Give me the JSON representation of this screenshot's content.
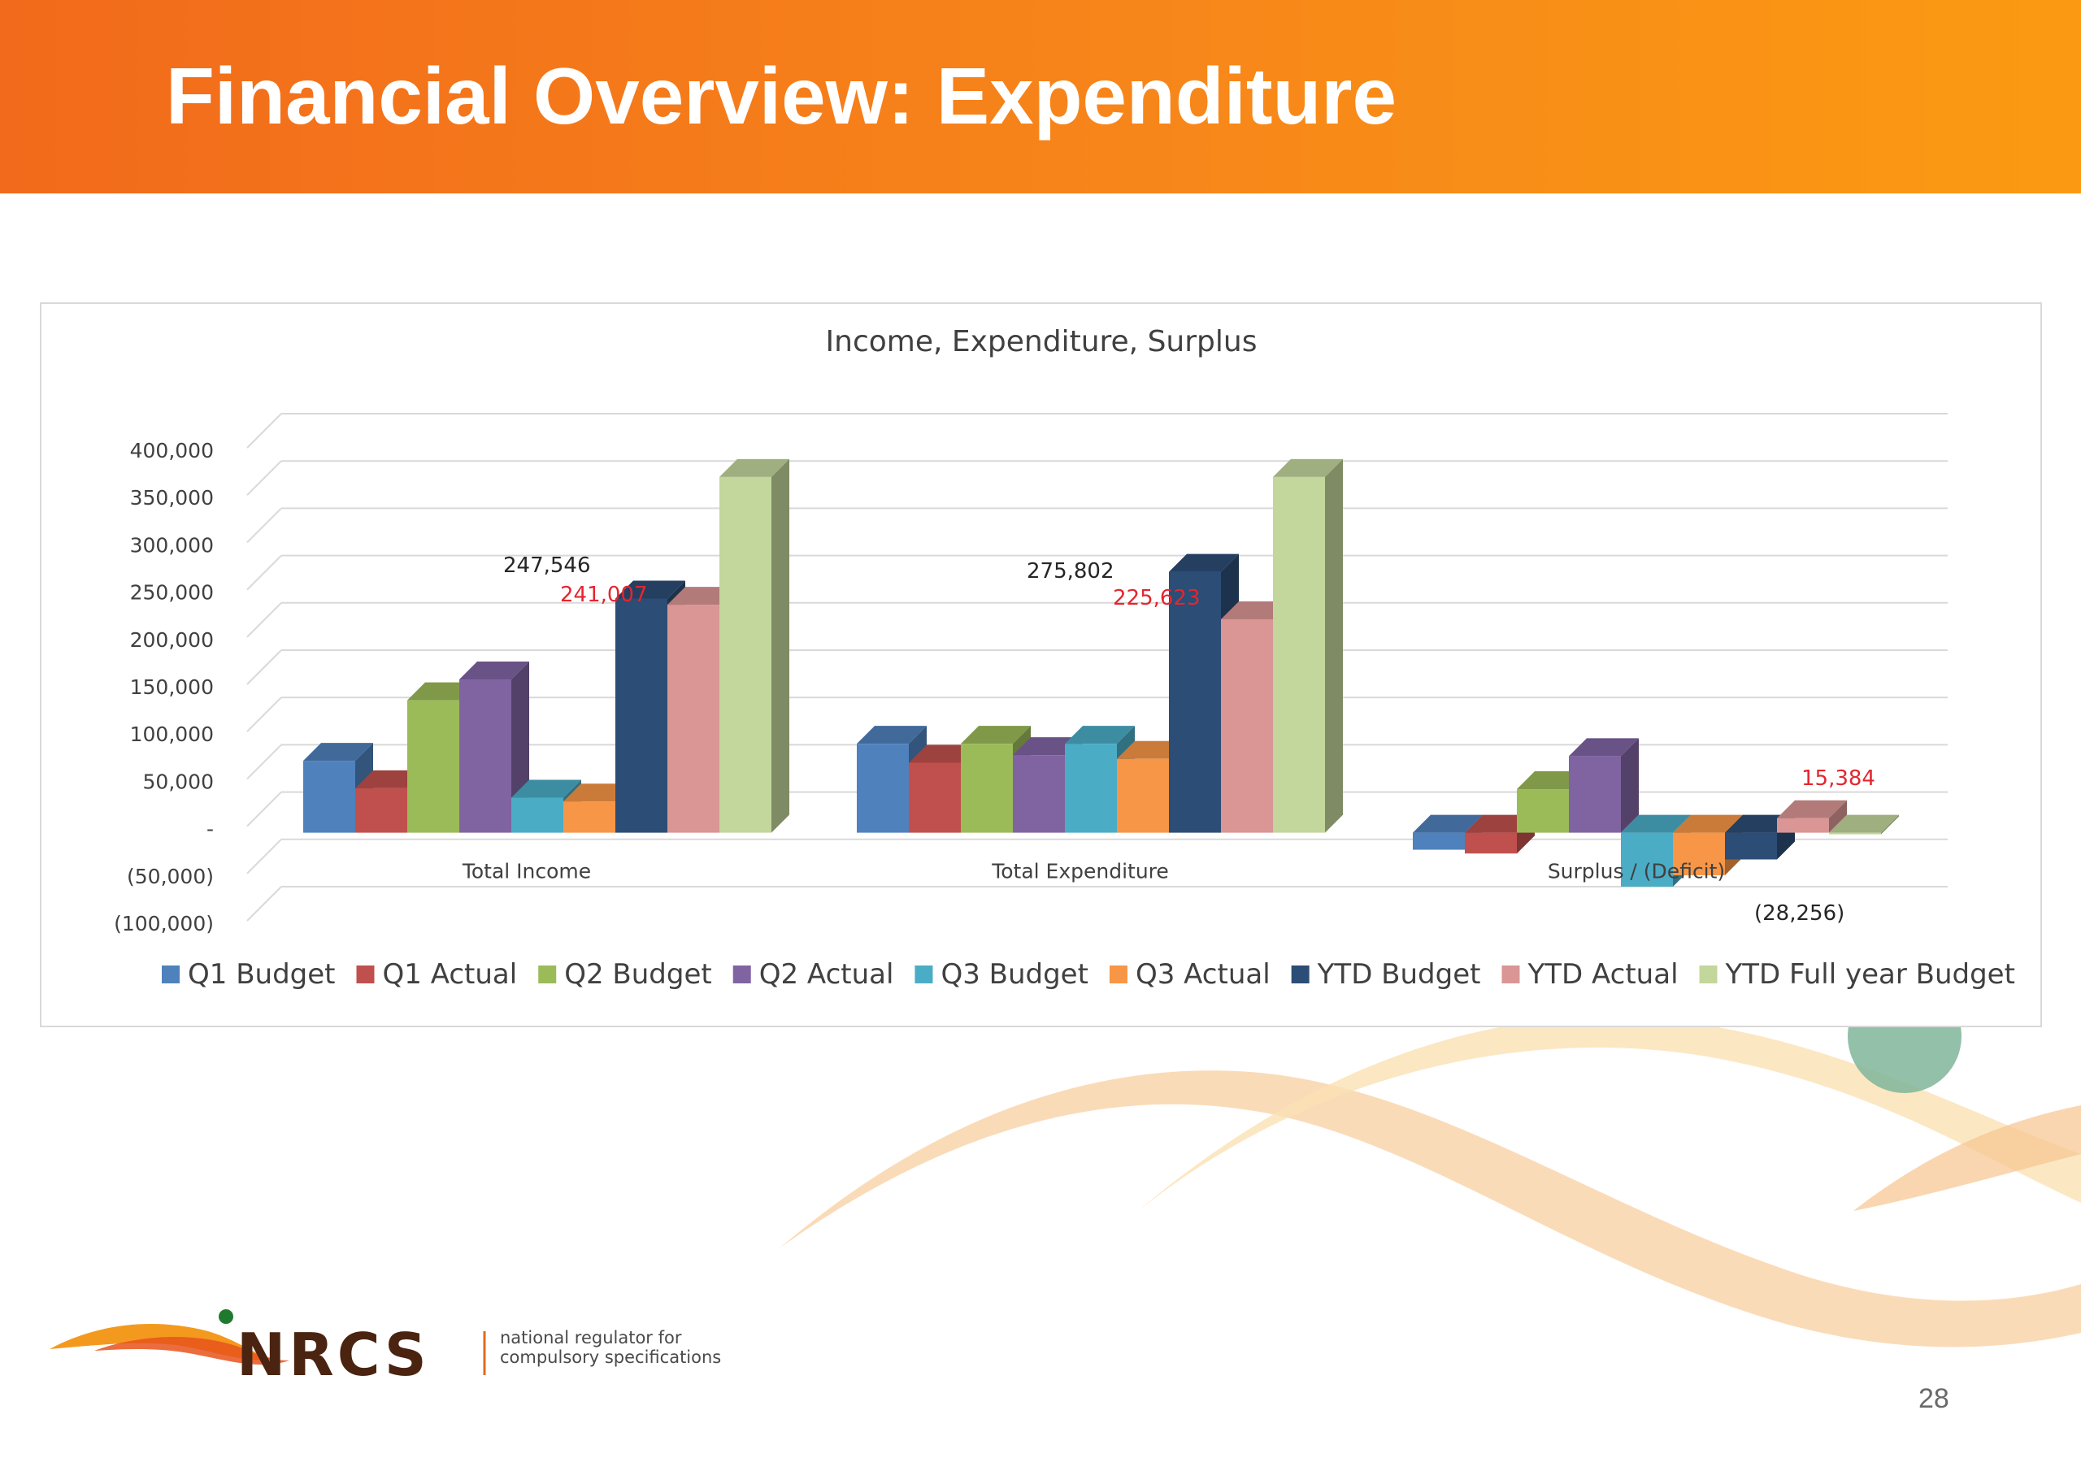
{
  "slide": {
    "title": "Financial Overview: Expenditure",
    "page_number": "28"
  },
  "logo": {
    "wordmark": "NRCS",
    "tagline_line1": "national regulator for",
    "tagline_line2": "compulsory specifications"
  },
  "chart_data": {
    "type": "bar",
    "style": "3d-clustered-column",
    "title": "Income, Expenditure, Surplus",
    "xlabel": "",
    "ylabel": "",
    "ylim": [
      -100000,
      400000
    ],
    "y_ticks": [
      "400,000",
      "350,000",
      "300,000",
      "250,000",
      "200,000",
      "150,000",
      "100,000",
      "50,000",
      "-",
      "(50,000)",
      "(100,000)"
    ],
    "y_tick_values": [
      400000,
      350000,
      300000,
      250000,
      200000,
      150000,
      100000,
      50000,
      0,
      -50000,
      -100000
    ],
    "grid": true,
    "legend_position": "bottom",
    "categories": [
      "Total Income",
      "Total Expenditure",
      "Surplus / (Deficit)"
    ],
    "series": [
      {
        "name": "Q1 Budget",
        "color": "#4f81bd",
        "values": [
          76000,
          94000,
          -18000
        ]
      },
      {
        "name": "Q1 Actual",
        "color": "#c0504d",
        "values": [
          47000,
          74000,
          -22000
        ]
      },
      {
        "name": "Q2 Budget",
        "color": "#9bbb59",
        "values": [
          140000,
          94000,
          46000
        ]
      },
      {
        "name": "Q2 Actual",
        "color": "#8064a2",
        "values": [
          162000,
          82000,
          81000
        ]
      },
      {
        "name": "Q3 Budget",
        "color": "#4bacc6",
        "values": [
          37000,
          94000,
          -57000
        ]
      },
      {
        "name": "Q3 Actual",
        "color": "#f79646",
        "values": [
          33000,
          78000,
          -45000
        ]
      },
      {
        "name": "YTD Budget",
        "color": "#2c4d75",
        "values": [
          247546,
          275802,
          -28256
        ]
      },
      {
        "name": "YTD Actual",
        "color": "#d99694",
        "values": [
          241007,
          225623,
          15384
        ]
      },
      {
        "name": "YTD Full year Budget",
        "color": "#c3d69b",
        "values": [
          376000,
          376000,
          0
        ]
      }
    ],
    "data_labels": [
      {
        "text": "247,546",
        "color": "#262626",
        "category": 0
      },
      {
        "text": "241,007",
        "color": "#e3262f",
        "category": 0
      },
      {
        "text": "275,802",
        "color": "#262626",
        "category": 1
      },
      {
        "text": "225,623",
        "color": "#e3262f",
        "category": 1
      },
      {
        "text": "15,384",
        "color": "#e3262f",
        "category": 2
      },
      {
        "text": "(28,256)",
        "color": "#262626",
        "category": 2
      }
    ]
  }
}
